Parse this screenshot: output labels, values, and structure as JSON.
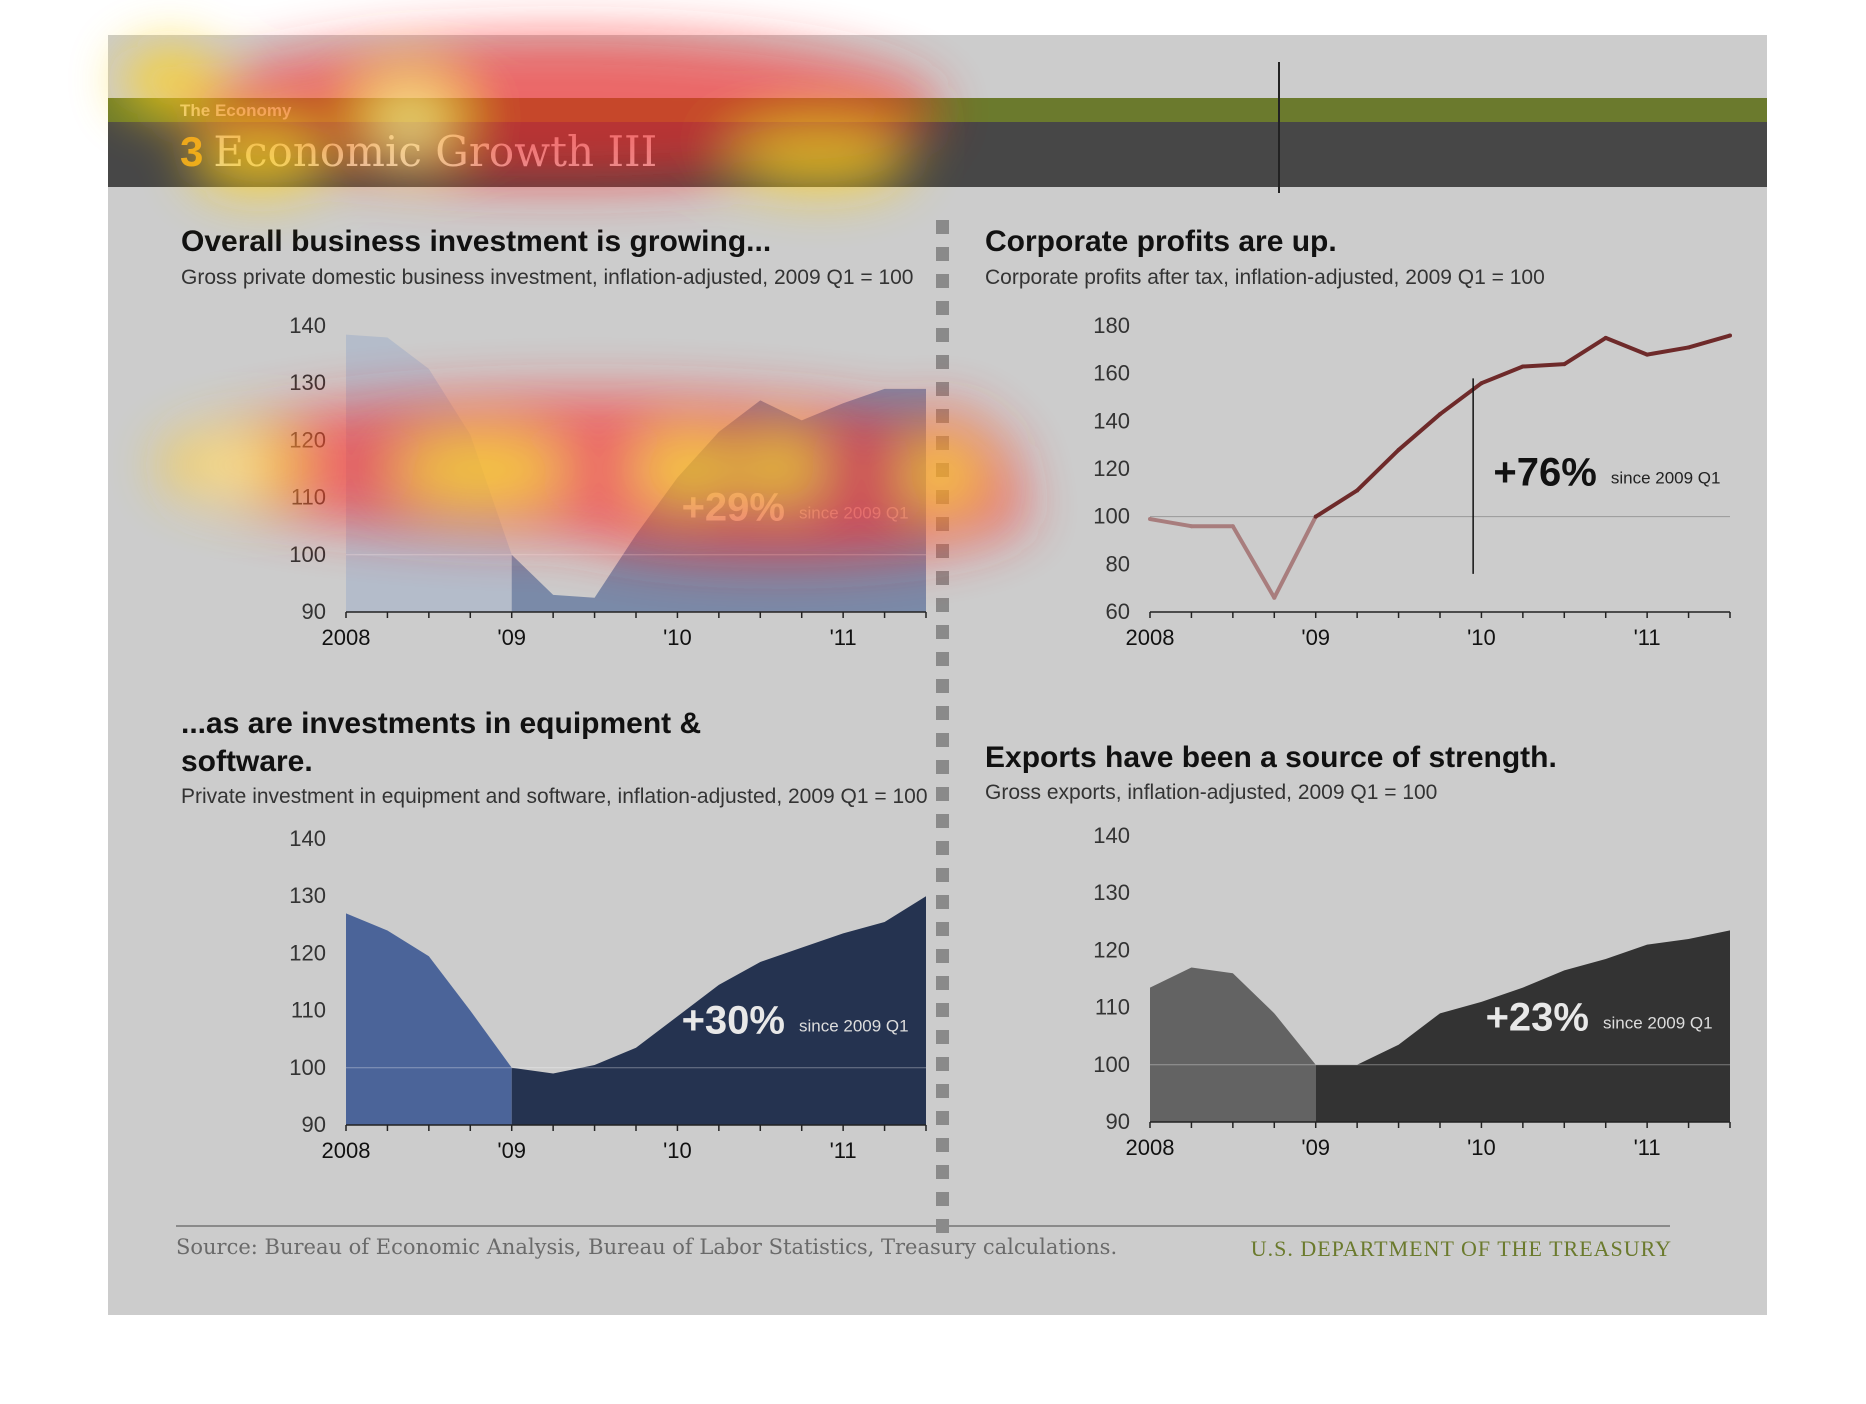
{
  "header": {
    "section": "The Economy",
    "number": "3",
    "title": "Economic Growth III"
  },
  "panels": [
    {
      "title": "Overall business investment is growing...",
      "subtitle": "Gross private domestic business investment, inflation-adjusted, 2009 Q1 = 100",
      "annotation_value": "+29%",
      "annotation_text": "since 2009 Q1"
    },
    {
      "title": "Corporate profits are up.",
      "subtitle": "Corporate profits after tax, inflation-adjusted, 2009 Q1 = 100",
      "annotation_value": "+76%",
      "annotation_text": "since 2009 Q1"
    },
    {
      "title": "...as are investments in equipment & software.",
      "subtitle": "Private investment in equipment and software, inflation-adjusted, 2009 Q1 = 100",
      "annotation_value": "+30%",
      "annotation_text": "since 2009 Q1"
    },
    {
      "title": "Exports have been a source of strength.",
      "subtitle": "Gross exports, inflation-adjusted, 2009 Q1 = 100",
      "annotation_value": "+23%",
      "annotation_text": "since 2009 Q1"
    }
  ],
  "footer": {
    "source": "Source: Bureau of Economic Analysis, Bureau of Labor Statistics, Treasury calculations.",
    "org": "U.S. DEPARTMENT OF THE TREASURY"
  },
  "chart_data": [
    {
      "type": "area",
      "x": [
        "2008 Q1",
        "2008 Q2",
        "2008 Q3",
        "2008 Q4",
        "2009 Q1",
        "2009 Q2",
        "2009 Q3",
        "2009 Q4",
        "2010 Q1",
        "2010 Q2",
        "2010 Q3",
        "2010 Q4",
        "2011 Q1",
        "2011 Q2",
        "2011 Q3"
      ],
      "values": [
        138.5,
        138,
        132.5,
        121,
        100,
        93,
        92.5,
        103.5,
        113.5,
        121.5,
        127,
        123.5,
        126.5,
        129,
        129
      ],
      "xticklabels": [
        "2008",
        "'09",
        "'10",
        "'11"
      ],
      "ylim": [
        90,
        140
      ],
      "yticks": [
        90,
        100,
        110,
        120,
        130,
        140
      ],
      "baseline": 100,
      "colors": {
        "pre": "#b4bcca",
        "post": "#7a8aa8"
      }
    },
    {
      "type": "line",
      "x": [
        "2008 Q1",
        "2008 Q2",
        "2008 Q3",
        "2008 Q4",
        "2009 Q1",
        "2009 Q2",
        "2009 Q3",
        "2009 Q4",
        "2010 Q1",
        "2010 Q2",
        "2010 Q3",
        "2010 Q4",
        "2011 Q1",
        "2011 Q2",
        "2011 Q3"
      ],
      "values": [
        99,
        96,
        96,
        66,
        100,
        111,
        128,
        143,
        156,
        163,
        164,
        175,
        168,
        171,
        176
      ],
      "xticklabels": [
        "2008",
        "'09",
        "'10",
        "'11"
      ],
      "ylim": [
        60,
        180
      ],
      "yticks": [
        60,
        80,
        100,
        120,
        140,
        160,
        180
      ],
      "baseline": 100,
      "colors": {
        "pre": "#a87d7d",
        "post": "#6e2a2a"
      }
    },
    {
      "type": "area",
      "x": [
        "2008 Q1",
        "2008 Q2",
        "2008 Q3",
        "2008 Q4",
        "2009 Q1",
        "2009 Q2",
        "2009 Q3",
        "2009 Q4",
        "2010 Q1",
        "2010 Q2",
        "2010 Q3",
        "2010 Q4",
        "2011 Q1",
        "2011 Q2",
        "2011 Q3"
      ],
      "values": [
        127,
        124,
        119.5,
        110,
        100,
        99,
        100.5,
        103.5,
        109,
        114.5,
        118.5,
        121,
        123.5,
        125.5,
        130
      ],
      "xticklabels": [
        "2008",
        "'09",
        "'10",
        "'11"
      ],
      "ylim": [
        90,
        140
      ],
      "yticks": [
        90,
        100,
        110,
        120,
        130,
        140
      ],
      "baseline": 100,
      "colors": {
        "pre": "#4b6499",
        "post": "#253350"
      }
    },
    {
      "type": "area",
      "x": [
        "2008 Q1",
        "2008 Q2",
        "2008 Q3",
        "2008 Q4",
        "2009 Q1",
        "2009 Q2",
        "2009 Q3",
        "2009 Q4",
        "2010 Q1",
        "2010 Q2",
        "2010 Q3",
        "2010 Q4",
        "2011 Q1",
        "2011 Q2",
        "2011 Q3"
      ],
      "values": [
        113.5,
        117,
        116,
        109,
        100,
        100,
        103.5,
        109,
        111,
        113.5,
        116.5,
        118.5,
        121,
        122,
        123.5
      ],
      "xticklabels": [
        "2008",
        "'09",
        "'10",
        "'11"
      ],
      "ylim": [
        90,
        140
      ],
      "yticks": [
        90,
        100,
        110,
        120,
        130,
        140
      ],
      "baseline": 100,
      "colors": {
        "pre": "#636363",
        "post": "#333333"
      }
    }
  ]
}
